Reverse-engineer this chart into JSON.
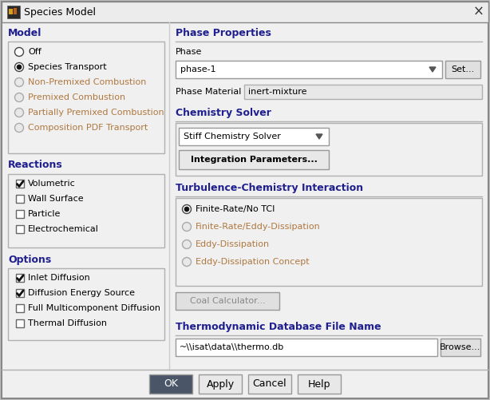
{
  "title": "Species Model",
  "dialog_bg": "#f0f0f0",
  "titlebar_bg": "#ececec",
  "white_bg": "#ffffff",
  "section_header_color": "#1f1f8f",
  "text_color": "#000000",
  "disabled_text_color": "#b07840",
  "disabled_radio_color": "#aaaaaa",
  "box_border": "#b0b0b0",
  "button_bg": "#e8e8e8",
  "ok_button_bg": "#4a5568",
  "ok_button_text": "#ffffff",
  "input_bg": "#e0e0e0",
  "model_options": [
    {
      "text": "Off",
      "checked": false,
      "enabled": true
    },
    {
      "text": "Species Transport",
      "checked": true,
      "enabled": true
    },
    {
      "text": "Non-Premixed Combustion",
      "checked": false,
      "enabled": false
    },
    {
      "text": "Premixed Combustion",
      "checked": false,
      "enabled": false
    },
    {
      "text": "Partially Premixed Combustion",
      "checked": false,
      "enabled": false
    },
    {
      "text": "Composition PDF Transport",
      "checked": false,
      "enabled": false
    }
  ],
  "reaction_options": [
    {
      "text": "Volumetric",
      "checked": true
    },
    {
      "text": "Wall Surface",
      "checked": false
    },
    {
      "text": "Particle",
      "checked": false
    },
    {
      "text": "Electrochemical",
      "checked": false
    }
  ],
  "options_items": [
    {
      "text": "Inlet Diffusion",
      "checked": true
    },
    {
      "text": "Diffusion Energy Source",
      "checked": true
    },
    {
      "text": "Full Multicomponent Diffusion",
      "checked": false
    },
    {
      "text": "Thermal Diffusion",
      "checked": false
    }
  ],
  "tci_options": [
    {
      "text": "Finite-Rate/No TCI",
      "checked": true,
      "enabled": true
    },
    {
      "text": "Finite-Rate/Eddy-Dissipation",
      "checked": false,
      "enabled": false
    },
    {
      "text": "Eddy-Dissipation",
      "checked": false,
      "enabled": false
    },
    {
      "text": "Eddy-Dissipation Concept",
      "checked": false,
      "enabled": false
    }
  ],
  "phase_dropdown": "phase-1",
  "phase_material": "inert-mixture",
  "chemistry_solver": "Stiff Chemistry Solver",
  "thermo_path": "~\\\\isat\\data\\\\thermo.db",
  "bottom_buttons": [
    "OK",
    "Apply",
    "Cancel",
    "Help"
  ]
}
